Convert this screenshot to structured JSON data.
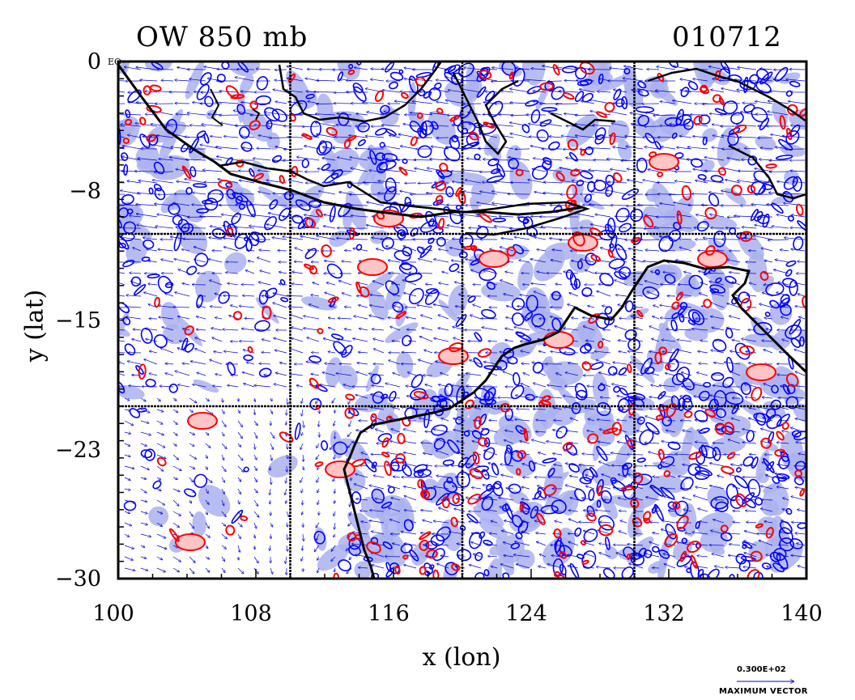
{
  "title_left": "OW 850 mb",
  "title_right": "010712",
  "x_axis": {
    "label": "x (lon)",
    "ticks": [
      "100",
      "108",
      "116",
      "124",
      "132",
      "140"
    ],
    "range": [
      100,
      140
    ]
  },
  "y_axis": {
    "label": "y (lat)",
    "ticks": [
      "0",
      "−8",
      "−15",
      "−23",
      "−30"
    ],
    "range": [
      -30,
      0
    ]
  },
  "corner_label": "EQ",
  "grid_lines": {
    "lon": [
      110,
      120,
      130
    ],
    "lat": [
      -10,
      -20
    ]
  },
  "reference_vector": {
    "value_label": "0.300E+02",
    "caption": "MAXIMUM VECTOR"
  },
  "colors": {
    "positive_contour": "#ff0000",
    "positive_fill": "#ffc4c4",
    "negative_contour": "#0000ff",
    "negative_fill": "#aab2ee",
    "coastline": "#000000",
    "vector": "#0000dd"
  }
}
